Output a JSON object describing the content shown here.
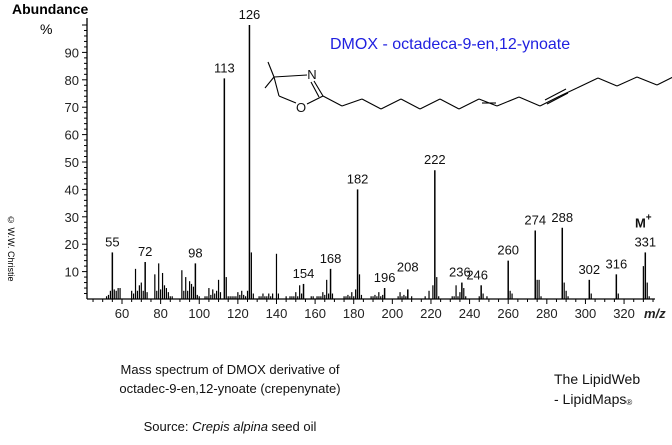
{
  "header": {
    "y_axis_title": "Abundance",
    "y_axis_unit": "%",
    "x_axis_unit": "m/z",
    "copyright": "© W.W. Christie"
  },
  "structure": {
    "title": "DMOX - octadeca-9-en,12-ynoate",
    "atom_N": "N",
    "atom_O": "O"
  },
  "molecular_ion": {
    "label": "M",
    "sup": "+"
  },
  "caption": {
    "line1": "Mass spectrum of DMOX derivative of",
    "line2": "octadec-9-en,12-ynoate  (crepenynate)",
    "source_prefix": "Source: ",
    "source_species": "Crepis alpina",
    "source_suffix": " seed oil"
  },
  "brand": {
    "line1": "The LipidWeb",
    "line2": "- LipidMaps",
    "mark": "®"
  },
  "chart_data": {
    "type": "bar",
    "title": "Mass spectrum of DMOX derivative of octadec-9-en,12-ynoate (crepenynate)",
    "xlabel": "m/z",
    "ylabel": "Abundance %",
    "xlim": [
      42,
      336
    ],
    "ylim": [
      0,
      100
    ],
    "x_ticks": [
      60,
      80,
      100,
      120,
      140,
      160,
      180,
      200,
      220,
      240,
      260,
      280,
      300,
      320
    ],
    "y_ticks": [
      10,
      20,
      30,
      40,
      50,
      60,
      70,
      80,
      90
    ],
    "grid": false,
    "labeled_peaks": [
      {
        "mz": 55,
        "abundance": 17
      },
      {
        "mz": 72,
        "abundance": 13.5
      },
      {
        "mz": 98,
        "abundance": 13
      },
      {
        "mz": 113,
        "abundance": 80.5
      },
      {
        "mz": 126,
        "abundance": 100
      },
      {
        "mz": 154,
        "abundance": 5.5
      },
      {
        "mz": 168,
        "abundance": 11
      },
      {
        "mz": 182,
        "abundance": 40
      },
      {
        "mz": 196,
        "abundance": 4
      },
      {
        "mz": 208,
        "abundance": 3.5
      },
      {
        "mz": 222,
        "abundance": 47
      },
      {
        "mz": 236,
        "abundance": 6
      },
      {
        "mz": 246,
        "abundance": 5
      },
      {
        "mz": 260,
        "abundance": 14
      },
      {
        "mz": 274,
        "abundance": 25
      },
      {
        "mz": 288,
        "abundance": 26
      },
      {
        "mz": 302,
        "abundance": 7
      },
      {
        "mz": 316,
        "abundance": 9
      },
      {
        "mz": 331,
        "abundance": 17
      }
    ],
    "minor_peaks": [
      [
        52,
        1
      ],
      [
        53,
        1.5
      ],
      [
        54,
        3
      ],
      [
        56,
        3.5
      ],
      [
        57,
        3
      ],
      [
        58,
        4
      ],
      [
        59,
        4
      ],
      [
        65,
        3
      ],
      [
        66,
        2
      ],
      [
        67,
        11
      ],
      [
        68,
        3
      ],
      [
        69,
        5
      ],
      [
        70,
        6
      ],
      [
        71,
        3
      ],
      [
        73,
        2.5
      ],
      [
        77,
        9
      ],
      [
        78,
        3
      ],
      [
        79,
        13
      ],
      [
        80,
        3.5
      ],
      [
        81,
        9.5
      ],
      [
        82,
        5
      ],
      [
        83,
        4
      ],
      [
        84,
        2.5
      ],
      [
        85,
        1
      ],
      [
        86,
        1
      ],
      [
        91,
        10.5
      ],
      [
        92,
        3
      ],
      [
        93,
        8
      ],
      [
        94,
        3
      ],
      [
        95,
        6.5
      ],
      [
        96,
        5.5
      ],
      [
        97,
        4.5
      ],
      [
        99,
        1.5
      ],
      [
        100,
        1
      ],
      [
        103,
        1
      ],
      [
        104,
        1
      ],
      [
        105,
        4
      ],
      [
        106,
        1.5
      ],
      [
        107,
        3.5
      ],
      [
        108,
        2
      ],
      [
        109,
        3
      ],
      [
        110,
        7
      ],
      [
        111,
        2.5
      ],
      [
        114,
        8
      ],
      [
        115,
        1
      ],
      [
        116,
        1
      ],
      [
        117,
        1
      ],
      [
        118,
        1
      ],
      [
        119,
        1
      ],
      [
        120,
        2.5
      ],
      [
        121,
        1.5
      ],
      [
        122,
        3
      ],
      [
        123,
        1.5
      ],
      [
        124,
        1
      ],
      [
        125,
        3
      ],
      [
        127,
        17
      ],
      [
        128,
        2
      ],
      [
        131,
        1
      ],
      [
        132,
        1
      ],
      [
        133,
        2
      ],
      [
        134,
        1
      ],
      [
        135,
        1
      ],
      [
        136,
        2
      ],
      [
        137,
        1
      ],
      [
        138,
        2
      ],
      [
        140,
        16.5
      ],
      [
        141,
        2
      ],
      [
        145,
        1
      ],
      [
        147,
        1
      ],
      [
        148,
        1
      ],
      [
        149,
        1
      ],
      [
        150,
        2.5
      ],
      [
        151,
        1
      ],
      [
        152,
        5
      ],
      [
        153,
        2
      ],
      [
        158,
        1
      ],
      [
        159,
        1
      ],
      [
        161,
        1
      ],
      [
        162,
        1
      ],
      [
        163,
        1
      ],
      [
        164,
        2.5
      ],
      [
        165,
        1.5
      ],
      [
        166,
        7
      ],
      [
        167,
        2
      ],
      [
        169,
        2
      ],
      [
        175,
        1
      ],
      [
        176,
        1
      ],
      [
        177,
        1.5
      ],
      [
        178,
        1
      ],
      [
        179,
        2.5
      ],
      [
        180,
        1
      ],
      [
        181,
        3.5
      ],
      [
        183,
        9
      ],
      [
        184,
        1.5
      ],
      [
        189,
        1
      ],
      [
        190,
        1
      ],
      [
        191,
        1.5
      ],
      [
        192,
        1
      ],
      [
        193,
        2.5
      ],
      [
        194,
        1
      ],
      [
        195,
        1.5
      ],
      [
        203,
        1
      ],
      [
        204,
        2.5
      ],
      [
        205,
        1
      ],
      [
        206,
        1.5
      ],
      [
        207,
        1
      ],
      [
        210,
        1
      ],
      [
        217,
        1
      ],
      [
        219,
        3
      ],
      [
        221,
        5
      ],
      [
        223,
        8
      ],
      [
        224,
        1
      ],
      [
        231,
        1
      ],
      [
        232,
        1
      ],
      [
        233,
        5
      ],
      [
        234,
        1
      ],
      [
        235,
        2.5
      ],
      [
        237,
        4
      ],
      [
        238,
        1
      ],
      [
        245,
        1
      ],
      [
        247,
        2
      ],
      [
        249,
        1
      ],
      [
        261,
        3
      ],
      [
        262,
        2
      ],
      [
        275,
        7
      ],
      [
        276,
        7
      ],
      [
        277,
        1
      ],
      [
        289,
        6
      ],
      [
        290,
        3
      ],
      [
        291,
        1
      ],
      [
        303,
        2
      ],
      [
        317,
        2
      ],
      [
        330,
        12
      ],
      [
        332,
        6
      ],
      [
        333,
        1
      ]
    ]
  }
}
